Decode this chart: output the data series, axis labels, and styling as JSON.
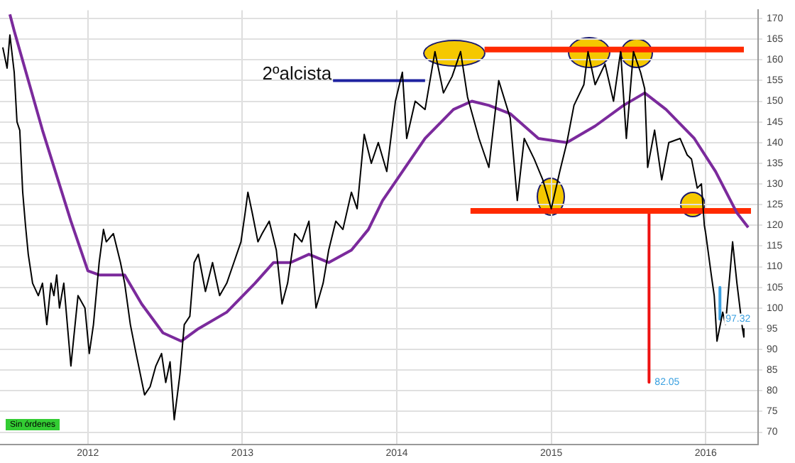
{
  "chart_data": {
    "type": "line",
    "xlim": [
      2011.431,
      2016.339
    ],
    "xticks": [
      2012,
      2013,
      2014,
      2015,
      2016
    ],
    "ylim": [
      67,
      172
    ],
    "yticks": [
      70,
      75,
      80,
      85,
      90,
      95,
      100,
      105,
      110,
      115,
      120,
      125,
      130,
      135,
      140,
      145,
      150,
      155,
      160,
      165,
      170
    ],
    "grid": true,
    "legend": false,
    "series": [
      {
        "type": "line",
        "color": "#000000",
        "x": [
          2011.449,
          2011.477,
          2011.495,
          2011.523,
          2011.541,
          2011.559,
          2011.578,
          2011.596,
          2011.614,
          2011.642,
          2011.679,
          2011.706,
          2011.734,
          2011.761,
          2011.78,
          2011.798,
          2011.816,
          2011.844,
          2011.89,
          2011.936,
          2011.981,
          2012.009,
          2012.036,
          2012.073,
          2012.101,
          2012.119,
          2012.165,
          2012.211,
          2012.238,
          2012.275,
          2012.312,
          2012.367,
          2012.403,
          2012.44,
          2012.477,
          2012.504,
          2012.532,
          2012.559,
          2012.596,
          2012.624,
          2012.66,
          2012.688,
          2012.715,
          2012.761,
          2012.807,
          2012.853,
          2012.899,
          2012.945,
          2012.991,
          2013.018,
          2013.036,
          2013.064,
          2013.101,
          2013.128,
          2013.174,
          2013.22,
          2013.257,
          2013.293,
          2013.339,
          2013.385,
          2013.431,
          2013.477,
          2013.523,
          2013.559,
          2013.605,
          2013.651,
          2013.706,
          2013.743,
          2013.789,
          2013.835,
          2013.88,
          2013.935,
          2013.991,
          2014.036,
          2014.064,
          2014.119,
          2014.183,
          2014.247,
          2014.302,
          2014.358,
          2014.413,
          2014.458,
          2014.532,
          2014.596,
          2014.66,
          2014.734,
          2014.78,
          2014.825,
          2014.89,
          2014.945,
          2015.0,
          2015.055,
          2015.101,
          2015.147,
          2015.211,
          2015.238,
          2015.284,
          2015.348,
          2015.403,
          2015.449,
          2015.486,
          2015.532,
          2015.578,
          2015.605,
          2015.624,
          2015.669,
          2015.715,
          2015.761,
          2015.834,
          2015.88,
          2015.908,
          2015.945,
          2015.972,
          2015.991,
          2016.0,
          2016.036,
          2016.055,
          2016.073,
          2016.11,
          2016.128,
          2016.156,
          2016.174,
          2016.202,
          2016.238,
          2016.247
        ],
        "values": [
          163,
          158,
          166,
          157,
          145,
          143,
          128,
          120,
          113,
          106,
          103,
          106,
          96,
          106,
          103,
          108,
          100,
          106,
          86,
          103,
          100,
          89,
          96,
          111,
          119,
          116,
          118,
          111,
          106,
          96,
          89,
          79,
          81,
          86,
          89,
          82,
          87,
          73,
          84,
          96,
          98,
          111,
          113,
          104,
          111,
          103,
          106,
          111,
          116,
          123,
          128,
          123,
          116,
          118,
          121,
          114,
          101,
          106,
          118,
          116,
          121,
          100,
          106,
          114,
          121,
          119,
          128,
          124,
          142,
          135,
          140,
          133,
          150,
          157,
          141,
          150,
          148,
          162,
          152,
          156,
          162,
          151,
          141,
          134,
          155,
          146,
          126,
          141,
          136,
          131,
          124,
          133,
          140,
          149,
          154,
          162,
          154,
          159,
          150,
          162,
          141,
          162,
          157,
          153,
          134,
          143,
          131,
          140,
          141,
          137,
          136,
          129,
          130,
          120,
          118,
          108,
          103,
          92,
          99,
          96,
          108,
          116,
          106,
          95,
          93
        ]
      },
      {
        "type": "line",
        "color": "#7b2a9c",
        "x": [
          2011.495,
          2011.523,
          2011.706,
          2011.89,
          2012.0,
          2012.073,
          2012.238,
          2012.348,
          2012.486,
          2012.605,
          2012.715,
          2012.899,
          2013.082,
          2013.202,
          2013.312,
          2013.431,
          2013.559,
          2013.706,
          2013.816,
          2013.908,
          2014.0,
          2014.183,
          2014.367,
          2014.486,
          2014.596,
          2014.734,
          2014.917,
          2015.101,
          2015.284,
          2015.468,
          2015.605,
          2015.743,
          2015.926,
          2016.064,
          2016.202,
          2016.275
        ],
        "values": [
          171,
          167,
          143,
          121,
          109,
          108,
          108,
          101,
          94,
          92,
          95,
          99,
          106,
          111,
          111,
          113,
          111,
          114,
          119,
          126,
          131,
          141,
          148,
          150,
          149,
          147,
          141,
          140,
          144,
          149,
          152,
          148,
          141,
          133,
          123,
          119.5
        ]
      },
      {
        "type": "line",
        "color": "#ff2a00",
        "x": [
          2014.568,
          2016.247
        ],
        "values": [
          162.5,
          162.5
        ]
      },
      {
        "type": "line",
        "color": "#ff2a00",
        "x": [
          2014.477,
          2016.293
        ],
        "values": [
          123.5,
          123.5
        ]
      },
      {
        "type": "line",
        "color": "#1e22a0",
        "x": [
          2013.587,
          2014.183
        ],
        "values": [
          155,
          155
        ]
      },
      {
        "type": "line",
        "color": "#ee1111",
        "x": [
          2015.633,
          2015.633
        ],
        "values": [
          123.5,
          82.05
        ]
      },
      {
        "type": "line",
        "color": "#3aa0e0",
        "x": [
          2016.092,
          2016.092
        ],
        "values": [
          105,
          97.32
        ]
      }
    ],
    "annotations": [
      {
        "text": "2ºalcista",
        "x": 2013.587,
        "y": 155
      },
      {
        "text": "82.05",
        "x": 2015.633,
        "y": 82.05
      },
      {
        "text": "97.32",
        "x": 2016.092,
        "y": 97.32
      },
      "Sin órdenes"
    ]
  }
}
